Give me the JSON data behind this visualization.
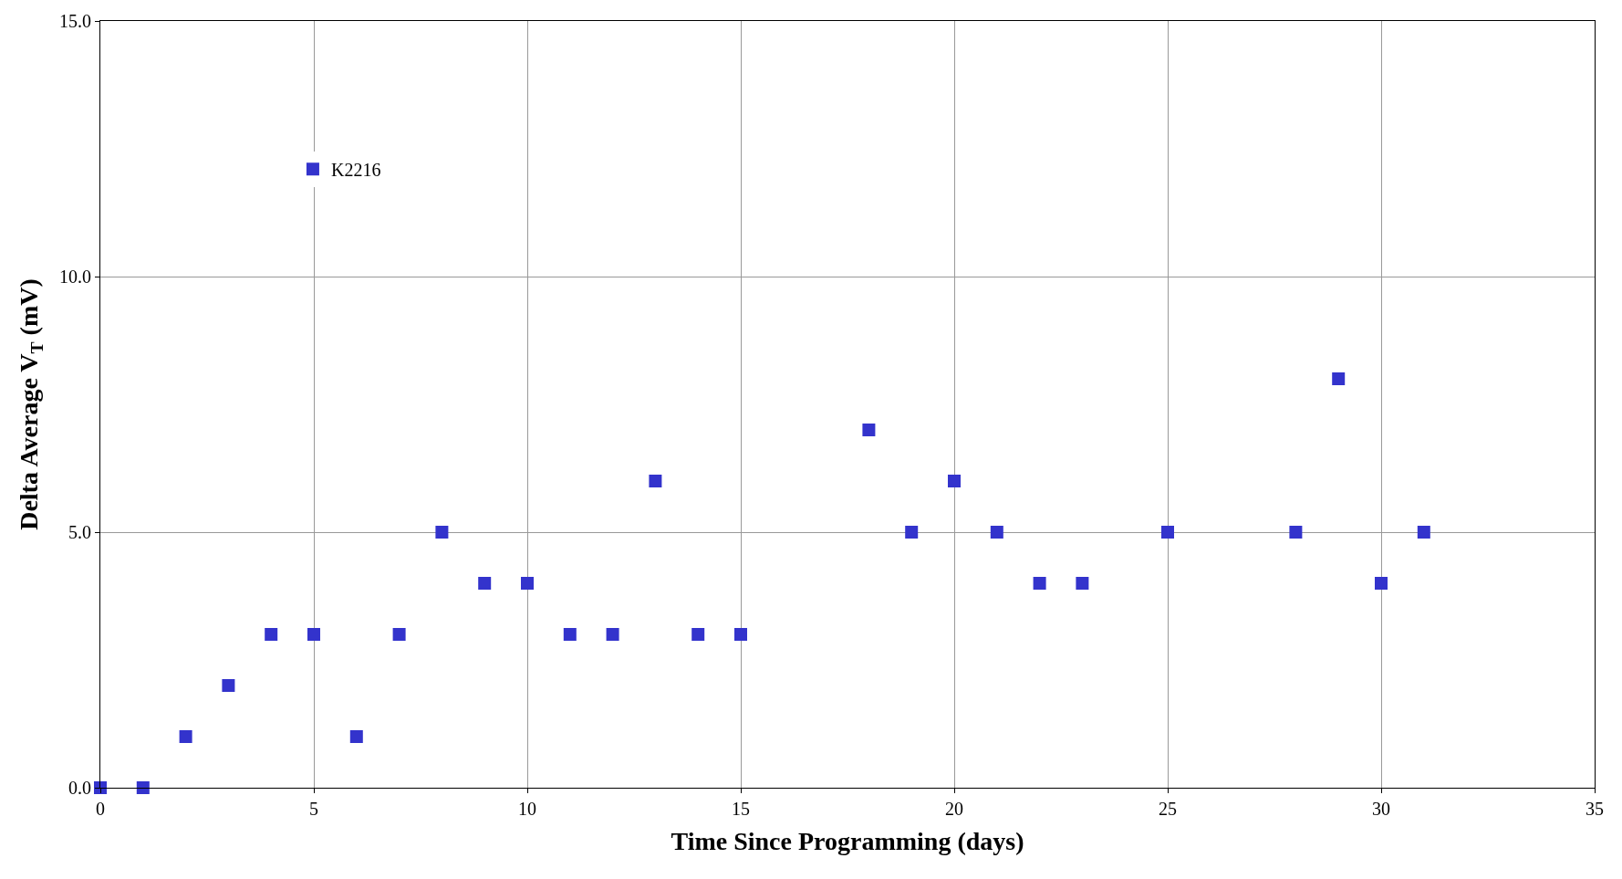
{
  "chart_data": {
    "type": "scatter",
    "xlabel": "Time Since Programming (days)",
    "ylabel": "Delta Average V$_{T}$ (mV)",
    "x": [
      0,
      1,
      2,
      3,
      4,
      5,
      6,
      7,
      8,
      9,
      10,
      11,
      12,
      13,
      14,
      15,
      18,
      19,
      20,
      21,
      22,
      23,
      25,
      28,
      29,
      30,
      31
    ],
    "series": [
      {
        "name": "K2216",
        "color": "#3333cc",
        "values": [
          0,
          0,
          1,
          2,
          3,
          3,
          1,
          3,
          5,
          4,
          4,
          3,
          3,
          6,
          3,
          3,
          7,
          5,
          6,
          5,
          4,
          4,
          5,
          5,
          8,
          4,
          5
        ]
      }
    ],
    "xlim": [
      0,
      35
    ],
    "xticks": [
      0,
      5,
      10,
      15,
      20,
      25,
      30,
      35
    ],
    "ylim": [
      0,
      15
    ],
    "yticks": [
      {
        "value": 0,
        "label": "0.0"
      },
      {
        "value": 5,
        "label": "5.0"
      },
      {
        "value": 10,
        "label": "10.0"
      },
      {
        "value": 15,
        "label": "15.0"
      }
    ],
    "grid": true,
    "legend": "top left",
    "marker": "square"
  }
}
